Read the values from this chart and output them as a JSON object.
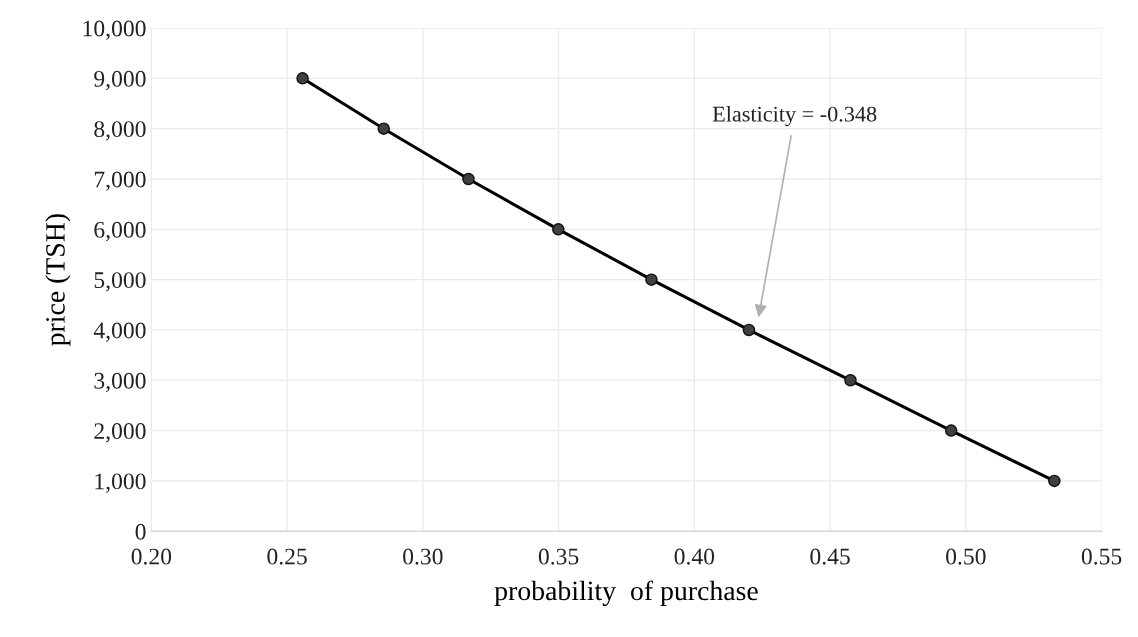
{
  "chart_data": {
    "type": "line",
    "xlabel": "probability  of purchase",
    "ylabel": "price (TSH)",
    "x": [
      0.2557,
      0.2856,
      0.3168,
      0.3499,
      0.3842,
      0.4201,
      0.4575,
      0.4946,
      0.5326
    ],
    "series": [
      {
        "color": "#000000",
        "values": [
          9000,
          8000,
          7000,
          6000,
          5000,
          4000,
          3000,
          2000,
          1000
        ]
      }
    ],
    "marker": "circle",
    "line_style": "solid",
    "grid": true,
    "legend": false,
    "xlim": [
      0.2,
      0.55
    ],
    "xticks": [
      {
        "value": 0.2,
        "label": "0.20"
      },
      {
        "value": 0.25,
        "label": "0.25"
      },
      {
        "value": 0.3,
        "label": "0.30"
      },
      {
        "value": 0.35,
        "label": "0.35"
      },
      {
        "value": 0.4,
        "label": "0.40"
      },
      {
        "value": 0.45,
        "label": "0.45"
      },
      {
        "value": 0.5,
        "label": "0.50"
      },
      {
        "value": 0.55,
        "label": "0.55"
      }
    ],
    "ylim": [
      0,
      10000
    ],
    "yticks": [
      0,
      {
        "value": 1000,
        "label": "1,000"
      },
      {
        "value": 2000,
        "label": "2,000"
      },
      {
        "value": 3000,
        "label": "3,000"
      },
      {
        "value": 4000,
        "label": "4,000"
      },
      {
        "value": 5000,
        "label": "5,000"
      },
      {
        "value": 6000,
        "label": "6,000"
      },
      {
        "value": 7000,
        "label": "7,000"
      },
      {
        "value": 8000,
        "label": "8,000"
      },
      {
        "value": 9000,
        "label": "9,000"
      },
      {
        "value": 10000,
        "label": "10,000"
      }
    ],
    "annotations": [
      "Elasticity = -0.348"
    ]
  }
}
